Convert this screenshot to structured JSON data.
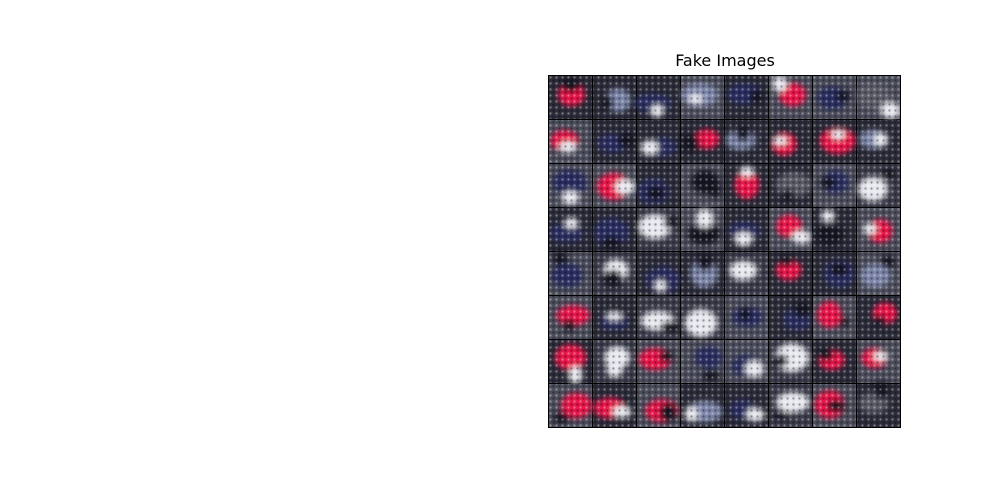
{
  "figure": {
    "title": "Fake Images"
  },
  "grid": {
    "rows": 8,
    "cols": 8,
    "palette": {
      "red": "#e8184a",
      "navy": "#2a2e5e",
      "slate": "#7d86a8",
      "light": "#e8e9ee",
      "dark": "#151522",
      "gray": "#5a5b66"
    },
    "tiles": [
      [
        "red",
        "slate",
        "navy",
        "slate",
        "navy",
        "red",
        "navy",
        "gray"
      ],
      [
        "red",
        "navy",
        "navy",
        "red",
        "slate",
        "red",
        "red",
        "slate"
      ],
      [
        "navy",
        "red",
        "navy",
        "dark",
        "red",
        "gray",
        "navy",
        "light"
      ],
      [
        "navy",
        "navy",
        "light",
        "dark",
        "navy",
        "red",
        "dark",
        "red"
      ],
      [
        "navy",
        "light",
        "navy",
        "slate",
        "light",
        "red",
        "navy",
        "slate"
      ],
      [
        "red",
        "navy",
        "light",
        "light",
        "navy",
        "navy",
        "red",
        "red"
      ],
      [
        "red",
        "light",
        "red",
        "navy",
        "navy",
        "light",
        "red",
        "red"
      ],
      [
        "red",
        "red",
        "red",
        "slate",
        "navy",
        "light",
        "red",
        "gray"
      ]
    ]
  }
}
